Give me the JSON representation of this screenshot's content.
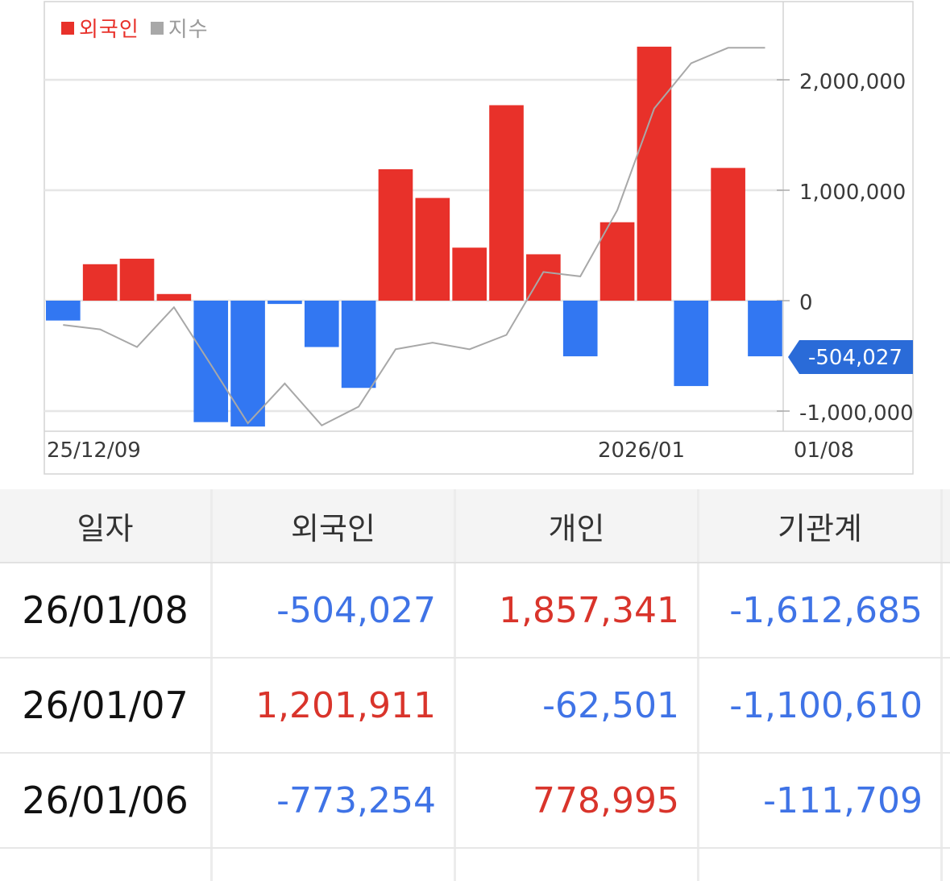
{
  "chart_data": {
    "type": "bar",
    "legend": [
      {
        "label": "외국인",
        "color": "#e8312a"
      },
      {
        "label": "지수",
        "color": "#a8a8a8"
      }
    ],
    "series": [
      {
        "name": "외국인",
        "type": "bar",
        "values": [
          -180000,
          330000,
          380000,
          60000,
          -1100000,
          -1140000,
          -30000,
          -420000,
          -790000,
          1190000,
          930000,
          480000,
          1770000,
          420000,
          -504027,
          710000,
          2300000,
          -773254,
          1201911,
          -504027
        ]
      },
      {
        "name": "지수",
        "type": "line",
        "values": [
          -220000,
          -260000,
          -420000,
          -60000,
          -580000,
          -1110000,
          -750000,
          -1130000,
          -960000,
          -440000,
          -380000,
          -440000,
          -310000,
          260000,
          220000,
          820000,
          1740000,
          2150000,
          2290000,
          2290000
        ]
      }
    ],
    "x_tick_labels": [
      "25/12/09",
      "2026/01",
      "01/08"
    ],
    "y_tick_labels": [
      "2,000,000",
      "1,000,000",
      "0",
      "-1,000,000"
    ],
    "y_ticks": [
      2000000,
      1000000,
      0,
      -1000000
    ],
    "ylim": [
      -1150000,
      2700000
    ],
    "grid": true,
    "legend_position": "top-left",
    "axis_position": "right",
    "pointer_label": "-504,027",
    "colors": {
      "positive": "#e8312a",
      "negative": "#3277f2",
      "index_line": "#a8a8a8",
      "pointer": "#2a6bd8"
    }
  },
  "table": {
    "headers": [
      "일자",
      "외국인",
      "개인",
      "기관계"
    ],
    "rows": [
      {
        "date": "26/01/08",
        "foreign": "-504,027",
        "individual": "1,857,341",
        "institution": "-1,612,685"
      },
      {
        "date": "26/01/07",
        "foreign": "1,201,911",
        "individual": "-62,501",
        "institution": "-1,100,610"
      },
      {
        "date": "26/01/06",
        "foreign": "-773,254",
        "individual": "778,995",
        "institution": "-111,709"
      }
    ]
  }
}
